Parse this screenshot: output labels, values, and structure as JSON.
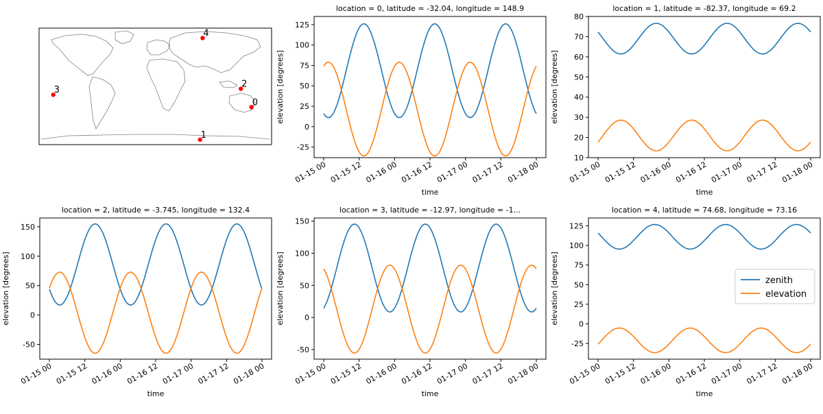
{
  "colors": {
    "zenith": "#1f77b4",
    "elevation": "#ff7f0e",
    "marker": "#ff0000",
    "coast": "#808080"
  },
  "chart_data": [
    {
      "type": "scatter",
      "title": "",
      "projection": "world-map",
      "points": [
        {
          "label": "0",
          "lat": -32.04,
          "lon": 148.9
        },
        {
          "label": "1",
          "lat": -82.37,
          "lon": 69.2
        },
        {
          "label": "2",
          "lat": -3.745,
          "lon": 132.4
        },
        {
          "label": "3",
          "lat": -12.97,
          "lon": -158.0
        },
        {
          "label": "4",
          "lat": 74.68,
          "lon": 73.16
        }
      ]
    },
    {
      "type": "line",
      "title": "location = 0, latitude = -32.04, longitude = 148.9",
      "xlabel": "time",
      "ylabel": "elevation [degrees]",
      "xticks": [
        "01-15 00",
        "01-15 12",
        "01-16 00",
        "01-16 12",
        "01-17 00",
        "01-17 12",
        "01-18 00"
      ],
      "ylim": [
        -38,
        135
      ],
      "yticks": [
        -25,
        0,
        25,
        50,
        75,
        100,
        125
      ],
      "series": [
        {
          "name": "zenith",
          "mean": 68.5,
          "amp": 57.5,
          "peak_hour": 13.6
        },
        {
          "name": "elevation",
          "mean": 21.5,
          "amp": 57.5,
          "peak_hour": 1.6
        }
      ]
    },
    {
      "type": "line",
      "title": "location = 1, latitude = -82.37, longitude = 69.2",
      "xlabel": "time",
      "ylabel": "elevation [degrees]",
      "xticks": [
        "01-15 00",
        "01-15 12",
        "01-16 00",
        "01-16 12",
        "01-17 00",
        "01-17 12",
        "01-18 00"
      ],
      "ylim": [
        10,
        80
      ],
      "yticks": [
        10,
        20,
        30,
        40,
        50,
        60,
        70,
        80
      ],
      "series": [
        {
          "name": "zenith",
          "mean": 69,
          "amp": 7.6,
          "peak_hour": 19.7
        },
        {
          "name": "elevation",
          "mean": 21,
          "amp": 7.6,
          "peak_hour": 7.7
        }
      ]
    },
    {
      "type": "line",
      "title": "location = 2, latitude = -3.745, longitude = 132.4",
      "xlabel": "time",
      "ylabel": "elevation [degrees]",
      "xticks": [
        "01-15 00",
        "01-15 12",
        "01-16 00",
        "01-16 12",
        "01-17 00",
        "01-17 12",
        "01-18 00"
      ],
      "ylim": [
        -75,
        165
      ],
      "yticks": [
        -50,
        0,
        50,
        100,
        150
      ],
      "series": [
        {
          "name": "zenith",
          "mean": 86,
          "amp": 69,
          "peak_hour": 15.5
        },
        {
          "name": "elevation",
          "mean": 4,
          "amp": 69,
          "peak_hour": 3.5
        }
      ]
    },
    {
      "type": "line",
      "title": "location = 3, latitude = -12.97, longitude = -1...",
      "xlabel": "time",
      "ylabel": "elevation [degrees]",
      "xticks": [
        "01-15 00",
        "01-15 12",
        "01-16 00",
        "01-16 12",
        "01-17 00",
        "01-17 12",
        "01-18 00"
      ],
      "ylim": [
        -65,
        155
      ],
      "yticks": [
        -50,
        0,
        50,
        100,
        150
      ],
      "series": [
        {
          "name": "zenith",
          "mean": 77,
          "amp": 68.5,
          "peak_hour": 10.4
        },
        {
          "name": "elevation",
          "mean": 13,
          "amp": 68.5,
          "peak_hour": 22.4
        }
      ]
    },
    {
      "type": "line",
      "title": "location = 4, latitude = 74.68, longitude = 73.16",
      "xlabel": "time",
      "ylabel": "elevation [degrees]",
      "xticks": [
        "01-15 00",
        "01-15 12",
        "01-16 00",
        "01-16 12",
        "01-17 00",
        "01-17 12",
        "01-18 00"
      ],
      "ylim": [
        -45,
        135
      ],
      "yticks": [
        -25,
        0,
        25,
        50,
        75,
        100,
        125
      ],
      "series": [
        {
          "name": "zenith",
          "mean": 111,
          "amp": 15.7,
          "peak_hour": 19.2
        },
        {
          "name": "elevation",
          "mean": -21,
          "amp": 15.7,
          "peak_hour": 7.2
        }
      ],
      "legend": {
        "placement": "center-right",
        "entries": [
          "zenith",
          "elevation"
        ]
      }
    }
  ]
}
